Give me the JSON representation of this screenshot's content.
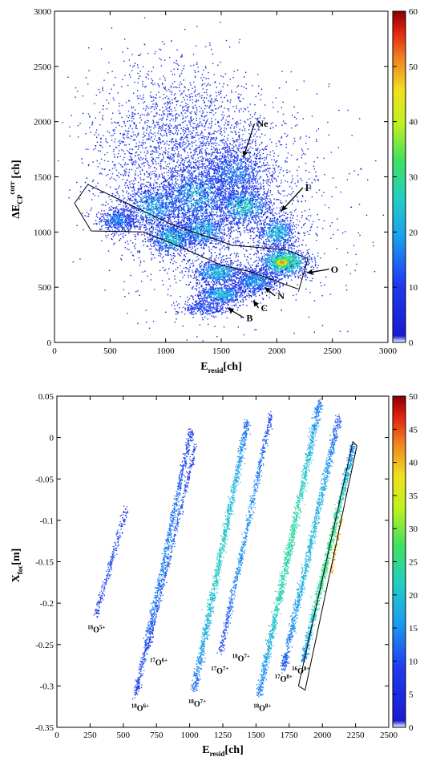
{
  "chart_data": [
    {
      "type": "heatmap",
      "xlabel": {
        "main": "E",
        "sub": "resid",
        "rest": "[ch]"
      },
      "ylabel": {
        "main": "ΔE",
        "sub": "CP",
        "sup": "corr",
        "rest": " [ch]"
      },
      "xlim": [
        0,
        3000
      ],
      "ylim": [
        0,
        3000
      ],
      "xticks": [
        "0",
        "500",
        "1000",
        "1500",
        "2000",
        "2500",
        "3000"
      ],
      "yticks": [
        "0",
        "500",
        "1000",
        "1500",
        "2000",
        "2500",
        "3000"
      ],
      "colorbar": {
        "min": 0,
        "max": 60,
        "ticks": [
          "0",
          "10",
          "20",
          "30",
          "40",
          "50",
          "60"
        ]
      },
      "grid": false,
      "annotations": [
        {
          "label": "Ne",
          "x": 1700,
          "y": 1680,
          "tx": 1900,
          "ty": 1960
        },
        {
          "label": "F",
          "x": 2040,
          "y": 1190,
          "tx": 2300,
          "ty": 1380
        },
        {
          "label": "O",
          "x": 2270,
          "y": 630,
          "tx": 2530,
          "ty": 640
        },
        {
          "label": "N",
          "x": 1890,
          "y": 500,
          "tx": 2050,
          "ty": 400
        },
        {
          "label": "C",
          "x": 1790,
          "y": 380,
          "tx": 1900,
          "ty": 290
        },
        {
          "label": "B",
          "x": 1560,
          "y": 310,
          "tx": 1770,
          "ty": 200
        }
      ],
      "gate_polygon": [
        [
          180,
          1260
        ],
        [
          300,
          1430
        ],
        [
          1050,
          1070
        ],
        [
          1600,
          880
        ],
        [
          2080,
          840
        ],
        [
          2280,
          760
        ],
        [
          2200,
          480
        ],
        [
          1760,
          640
        ],
        [
          1500,
          700
        ],
        [
          1050,
          900
        ],
        [
          800,
          1000
        ],
        [
          330,
          1010
        ],
        [
          180,
          1260
        ]
      ],
      "blobs": [
        {
          "x": 560,
          "y": 1110,
          "sx": 90,
          "sy": 55,
          "n": 500,
          "v": 14
        },
        {
          "x": 890,
          "y": 1230,
          "sx": 150,
          "sy": 110,
          "n": 800,
          "v": 18
        },
        {
          "x": 1060,
          "y": 950,
          "sx": 110,
          "sy": 75,
          "n": 700,
          "v": 22
        },
        {
          "x": 1330,
          "y": 1020,
          "sx": 120,
          "sy": 80,
          "n": 700,
          "v": 20
        },
        {
          "x": 1270,
          "y": 1330,
          "sx": 170,
          "sy": 140,
          "n": 1000,
          "v": 20
        },
        {
          "x": 1620,
          "y": 1540,
          "sx": 150,
          "sy": 120,
          "n": 800,
          "v": 14
        },
        {
          "x": 1700,
          "y": 1240,
          "sx": 120,
          "sy": 90,
          "n": 800,
          "v": 24
        },
        {
          "x": 2000,
          "y": 1000,
          "sx": 90,
          "sy": 75,
          "n": 600,
          "v": 20
        },
        {
          "x": 2060,
          "y": 730,
          "sx": 110,
          "sy": 65,
          "n": 1100,
          "v": 34
        },
        {
          "x": 1800,
          "y": 560,
          "sx": 100,
          "sy": 55,
          "n": 700,
          "v": 16
        },
        {
          "x": 1460,
          "y": 640,
          "sx": 120,
          "sy": 55,
          "n": 700,
          "v": 20
        },
        {
          "x": 1500,
          "y": 440,
          "sx": 110,
          "sy": 45,
          "n": 700,
          "v": 20
        },
        {
          "x": 1350,
          "y": 320,
          "sx": 120,
          "sy": 35,
          "n": 300,
          "v": 10
        },
        {
          "x": 1100,
          "y": 1800,
          "sx": 380,
          "sy": 380,
          "n": 2300,
          "v": 7
        },
        {
          "x": 1500,
          "y": 1250,
          "sx": 500,
          "sy": 450,
          "n": 1800,
          "v": 6
        }
      ],
      "hotspot": {
        "x": 2040,
        "y": 730,
        "v": 52
      }
    },
    {
      "type": "heatmap",
      "xlabel": {
        "main": "E",
        "sub": "resid",
        "rest": "[ch]"
      },
      "ylabel": {
        "main": "X",
        "sub": "foc",
        "rest": "[m]"
      },
      "xlim": [
        0,
        2500
      ],
      "ylim": [
        -0.35,
        0.05
      ],
      "xticks": [
        "0",
        "250",
        "500",
        "750",
        "1000",
        "1250",
        "1500",
        "1750",
        "2000",
        "2250",
        "2500"
      ],
      "yticks": [
        "0.05",
        "0",
        "-0.05",
        "-0.1",
        "-0.15",
        "-0.2",
        "-0.25",
        "-0.3",
        "-0.35"
      ],
      "colorbar": {
        "min": 0,
        "max": 50,
        "ticks": [
          "0",
          "5",
          "10",
          "15",
          "20",
          "25",
          "30",
          "35",
          "40",
          "45",
          "50"
        ]
      },
      "grid": false,
      "lines": [
        {
          "x0": 290,
          "y0": -0.215,
          "x1": 520,
          "y1": -0.085,
          "n": 250,
          "w": 10,
          "v": 7
        },
        {
          "x0": 590,
          "y0": -0.31,
          "x1": 1010,
          "y1": 0.01,
          "n": 900,
          "w": 10,
          "v": 10
        },
        {
          "x0": 680,
          "y0": -0.255,
          "x1": 1040,
          "y1": -0.01,
          "n": 450,
          "w": 8,
          "v": 8
        },
        {
          "x0": 1030,
          "y0": -0.305,
          "x1": 1430,
          "y1": 0.02,
          "n": 1200,
          "w": 12,
          "v": 16
        },
        {
          "x0": 1230,
          "y0": -0.26,
          "x1": 1610,
          "y1": 0.03,
          "n": 700,
          "w": 10,
          "v": 11
        },
        {
          "x0": 1520,
          "y0": -0.31,
          "x1": 1980,
          "y1": 0.045,
          "n": 1400,
          "w": 13,
          "v": 18
        },
        {
          "x0": 1700,
          "y0": -0.28,
          "x1": 2120,
          "y1": 0.025,
          "n": 1100,
          "w": 12,
          "v": 14
        },
        {
          "x0": 1850,
          "y0": -0.27,
          "x1": 2230,
          "y1": -0.01,
          "n": 1200,
          "w": 11,
          "v": 20
        }
      ],
      "hot_segment": {
        "x0": 2060,
        "y0": -0.165,
        "x1": 2140,
        "y1": -0.095,
        "n": 80,
        "v": 36
      },
      "gate_polygon": [
        [
          1820,
          -0.3
        ],
        [
          1870,
          -0.305
        ],
        [
          2260,
          -0.01
        ],
        [
          2230,
          -0.005
        ],
        [
          1820,
          -0.3
        ]
      ],
      "isotope_labels": [
        {
          "mass": "18",
          "body": "O",
          "charge": "5+",
          "x": 230,
          "y": -0.235
        },
        {
          "mass": "18",
          "body": "O",
          "charge": "6+",
          "x": 560,
          "y": -0.33
        },
        {
          "mass": "17",
          "body": "O",
          "charge": "6+",
          "x": 700,
          "y": -0.275
        },
        {
          "mass": "18",
          "body": "O",
          "charge": "7+",
          "x": 990,
          "y": -0.325
        },
        {
          "mass": "17",
          "body": "O",
          "charge": "7+",
          "x": 1160,
          "y": -0.285
        },
        {
          "mass": "18",
          "body": "O",
          "charge": "7+",
          "x": 1320,
          "y": -0.27
        },
        {
          "mass": "18",
          "body": "O",
          "charge": "8+",
          "x": 1480,
          "y": -0.33
        },
        {
          "mass": "17",
          "body": "O",
          "charge": "8+",
          "x": 1640,
          "y": -0.295
        },
        {
          "mass": "16",
          "body": "O",
          "charge": "8+",
          "x": 1770,
          "y": -0.285
        }
      ]
    }
  ]
}
